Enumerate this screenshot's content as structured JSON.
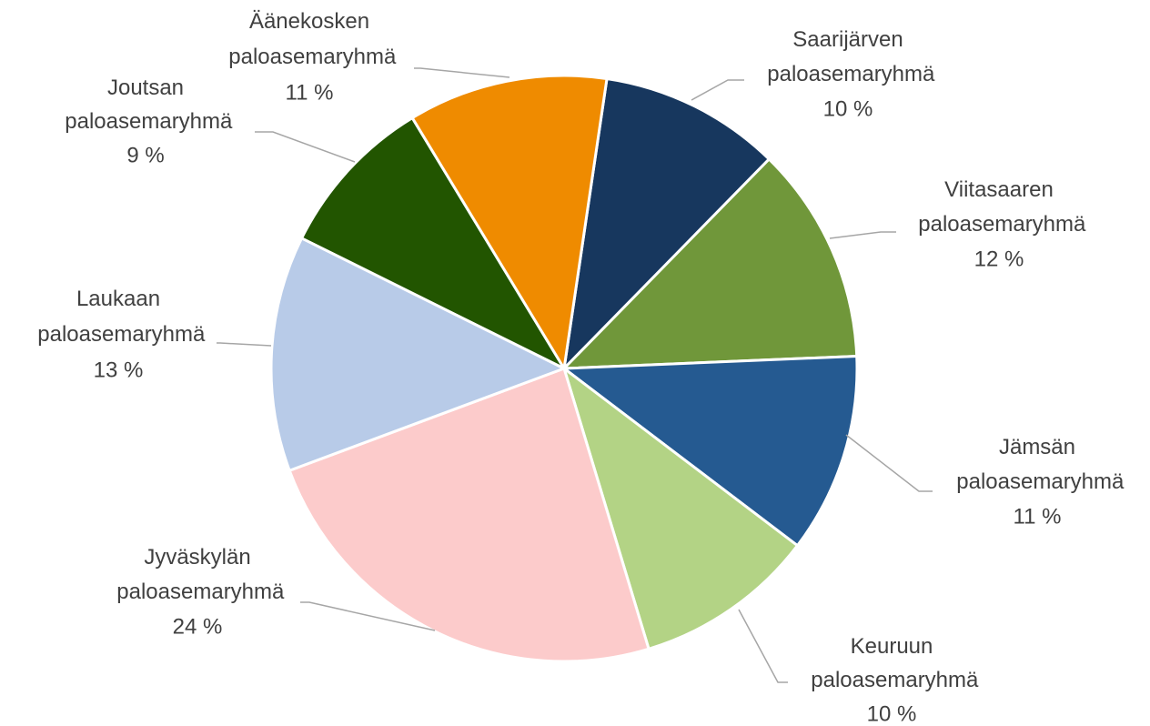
{
  "chart_data": {
    "type": "pie",
    "categories": [
      "Saarijärven paloasemaryhmä",
      "Viitasaaren paloasemaryhmä",
      "Jämsän paloasemaryhmä",
      "Keuruun paloasemaryhmä",
      "Jyväskylän paloasemaryhmä",
      "Laukaan paloasemaryhmä",
      "Joutsan paloasemaryhmä",
      "Äänekosken paloasemaryhmä"
    ],
    "values": [
      10,
      12,
      11,
      10,
      24,
      13,
      9,
      11
    ],
    "value_labels": [
      "10 %",
      "12 %",
      "11 %",
      "10 %",
      "24 %",
      "13 %",
      "9 %",
      "11 %"
    ],
    "colors": [
      "#17375e",
      "#70973a",
      "#255a91",
      "#b3d385",
      "#fccbcb",
      "#b8cbe8",
      "#225500",
      "#ef8b00"
    ]
  }
}
